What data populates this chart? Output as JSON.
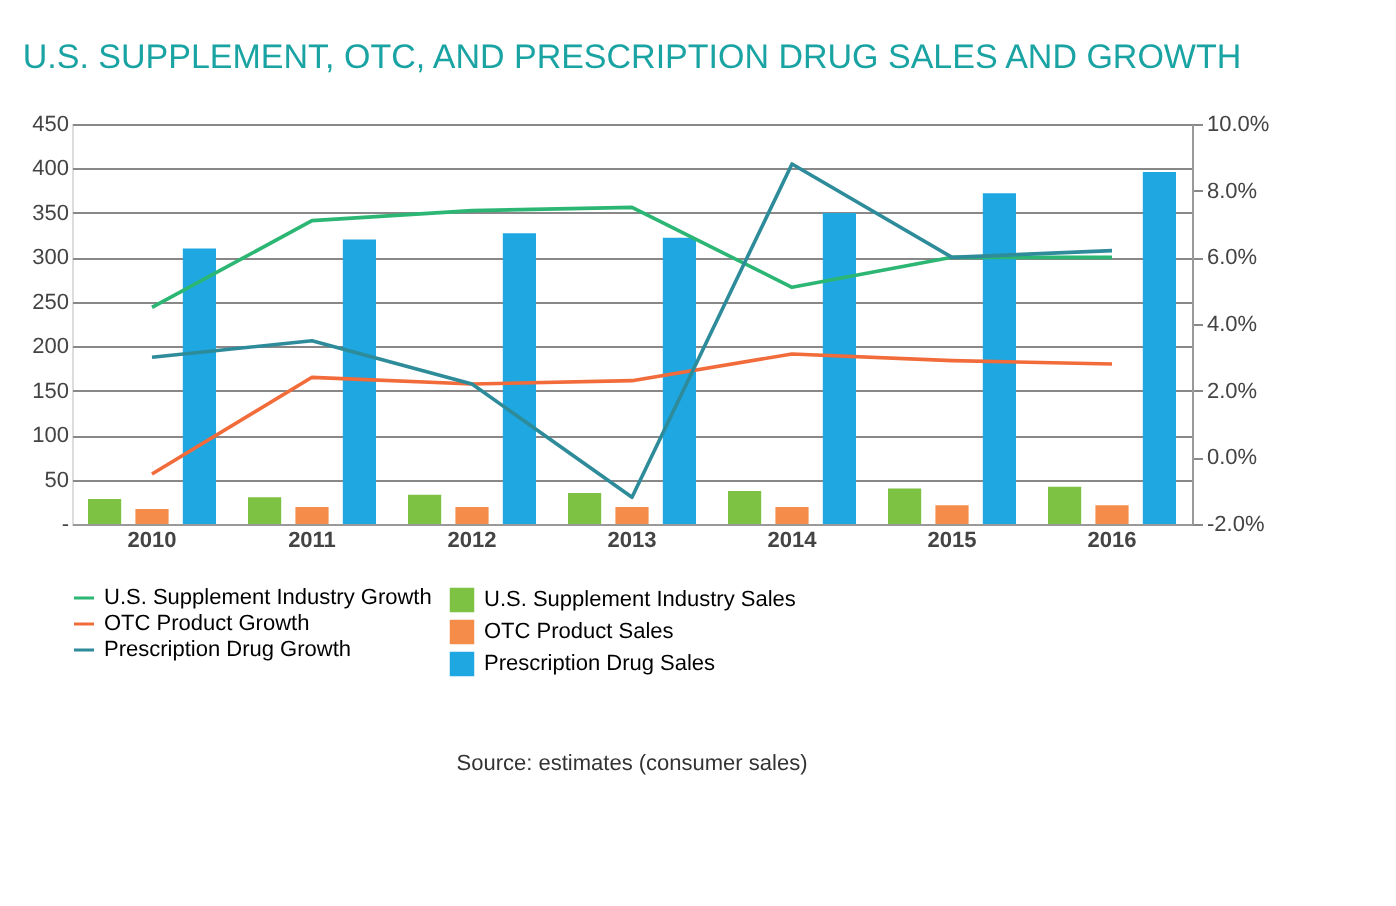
{
  "chart_data": {
    "type": "bar",
    "title": "U.S. SUPPLEMENT, OTC, AND PRESCRIPTION DRUG SALES AND GROWTH",
    "categories": [
      "2010",
      "2011",
      "2012",
      "2013",
      "2014",
      "2015",
      "2016"
    ],
    "series": [
      {
        "name": "U.S. Supplement Industry Sales",
        "color": "#7dc242",
        "values": [
          28,
          30,
          33,
          35,
          37,
          40,
          42
        ]
      },
      {
        "name": "OTC Product Sales",
        "color": "#f58c4a",
        "values": [
          17,
          19,
          19,
          19,
          19,
          21,
          21
        ]
      },
      {
        "name": "Prescription Drug Sales",
        "color": "#1ea7e1",
        "values": [
          310,
          320,
          327,
          322,
          350,
          372,
          396
        ]
      },
      {
        "name": "U.S. Supplement Industry Growth",
        "type": "line",
        "axis": "y2",
        "color": "#2bb673",
        "values": [
          4.5,
          7.1,
          7.4,
          7.5,
          5.1,
          6.0,
          6.0
        ]
      },
      {
        "name": "OTC Product Growth",
        "type": "line",
        "axis": "y2",
        "color": "#f26b3a",
        "values": [
          -0.5,
          2.4,
          2.2,
          2.3,
          3.1,
          2.9,
          2.8
        ]
      },
      {
        "name": "Prescription Drug Growth",
        "type": "line",
        "axis": "y2",
        "color": "#2e8b9a",
        "values": [
          3.0,
          3.5,
          2.2,
          -1.2,
          8.8,
          6.0,
          6.2
        ]
      }
    ],
    "ylim": [
      0,
      450
    ],
    "yticks": [
      {
        "value": 0,
        "label": "-"
      },
      50,
      100,
      150,
      200,
      250,
      300,
      350,
      400,
      450
    ],
    "y2lim": [
      -2,
      10
    ],
    "y2ticks": [
      {
        "value": -2,
        "label": "-2.0%"
      },
      {
        "value": 0,
        "label": "0.0%"
      },
      {
        "value": 2,
        "label": "2.0%"
      },
      {
        "value": 4,
        "label": "4.0%"
      },
      {
        "value": 6,
        "label": "6.0%"
      },
      {
        "value": 8,
        "label": "8.0%"
      },
      {
        "value": 10,
        "label": "10.0%"
      }
    ],
    "grid": "y",
    "legend": "bottom",
    "annotations": [
      "Source: estimates (consumer sales)"
    ]
  }
}
